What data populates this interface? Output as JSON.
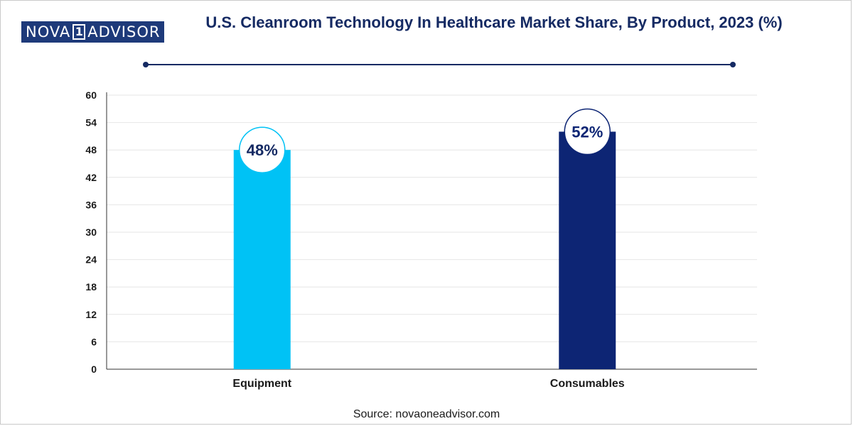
{
  "brand": {
    "logo_left": "NOVA",
    "logo_mark": "1",
    "logo_right": "ADVISOR"
  },
  "header": {
    "title": "U.S. Cleanroom Technology In Healthcare Market Share, By Product, 2023 (%)"
  },
  "footer": {
    "source": "Source: novaoneadvisor.com"
  },
  "colors": {
    "equipment": "#00c2f5",
    "consumables": "#0d2574",
    "accent": "#152a63",
    "grid": "#e6e6e6"
  },
  "chart_data": {
    "type": "bar",
    "title": "U.S. Cleanroom Technology In Healthcare Market Share, By Product, 2023 (%)",
    "xlabel": "",
    "ylabel": "",
    "categories": [
      "Equipment",
      "Consumables"
    ],
    "values": [
      48,
      52
    ],
    "data_labels": [
      "48%",
      "52%"
    ],
    "ylim": [
      0,
      60
    ],
    "yticks": [
      0,
      6,
      12,
      18,
      24,
      30,
      36,
      42,
      48,
      54,
      60
    ],
    "grid": true,
    "legend": "none"
  }
}
